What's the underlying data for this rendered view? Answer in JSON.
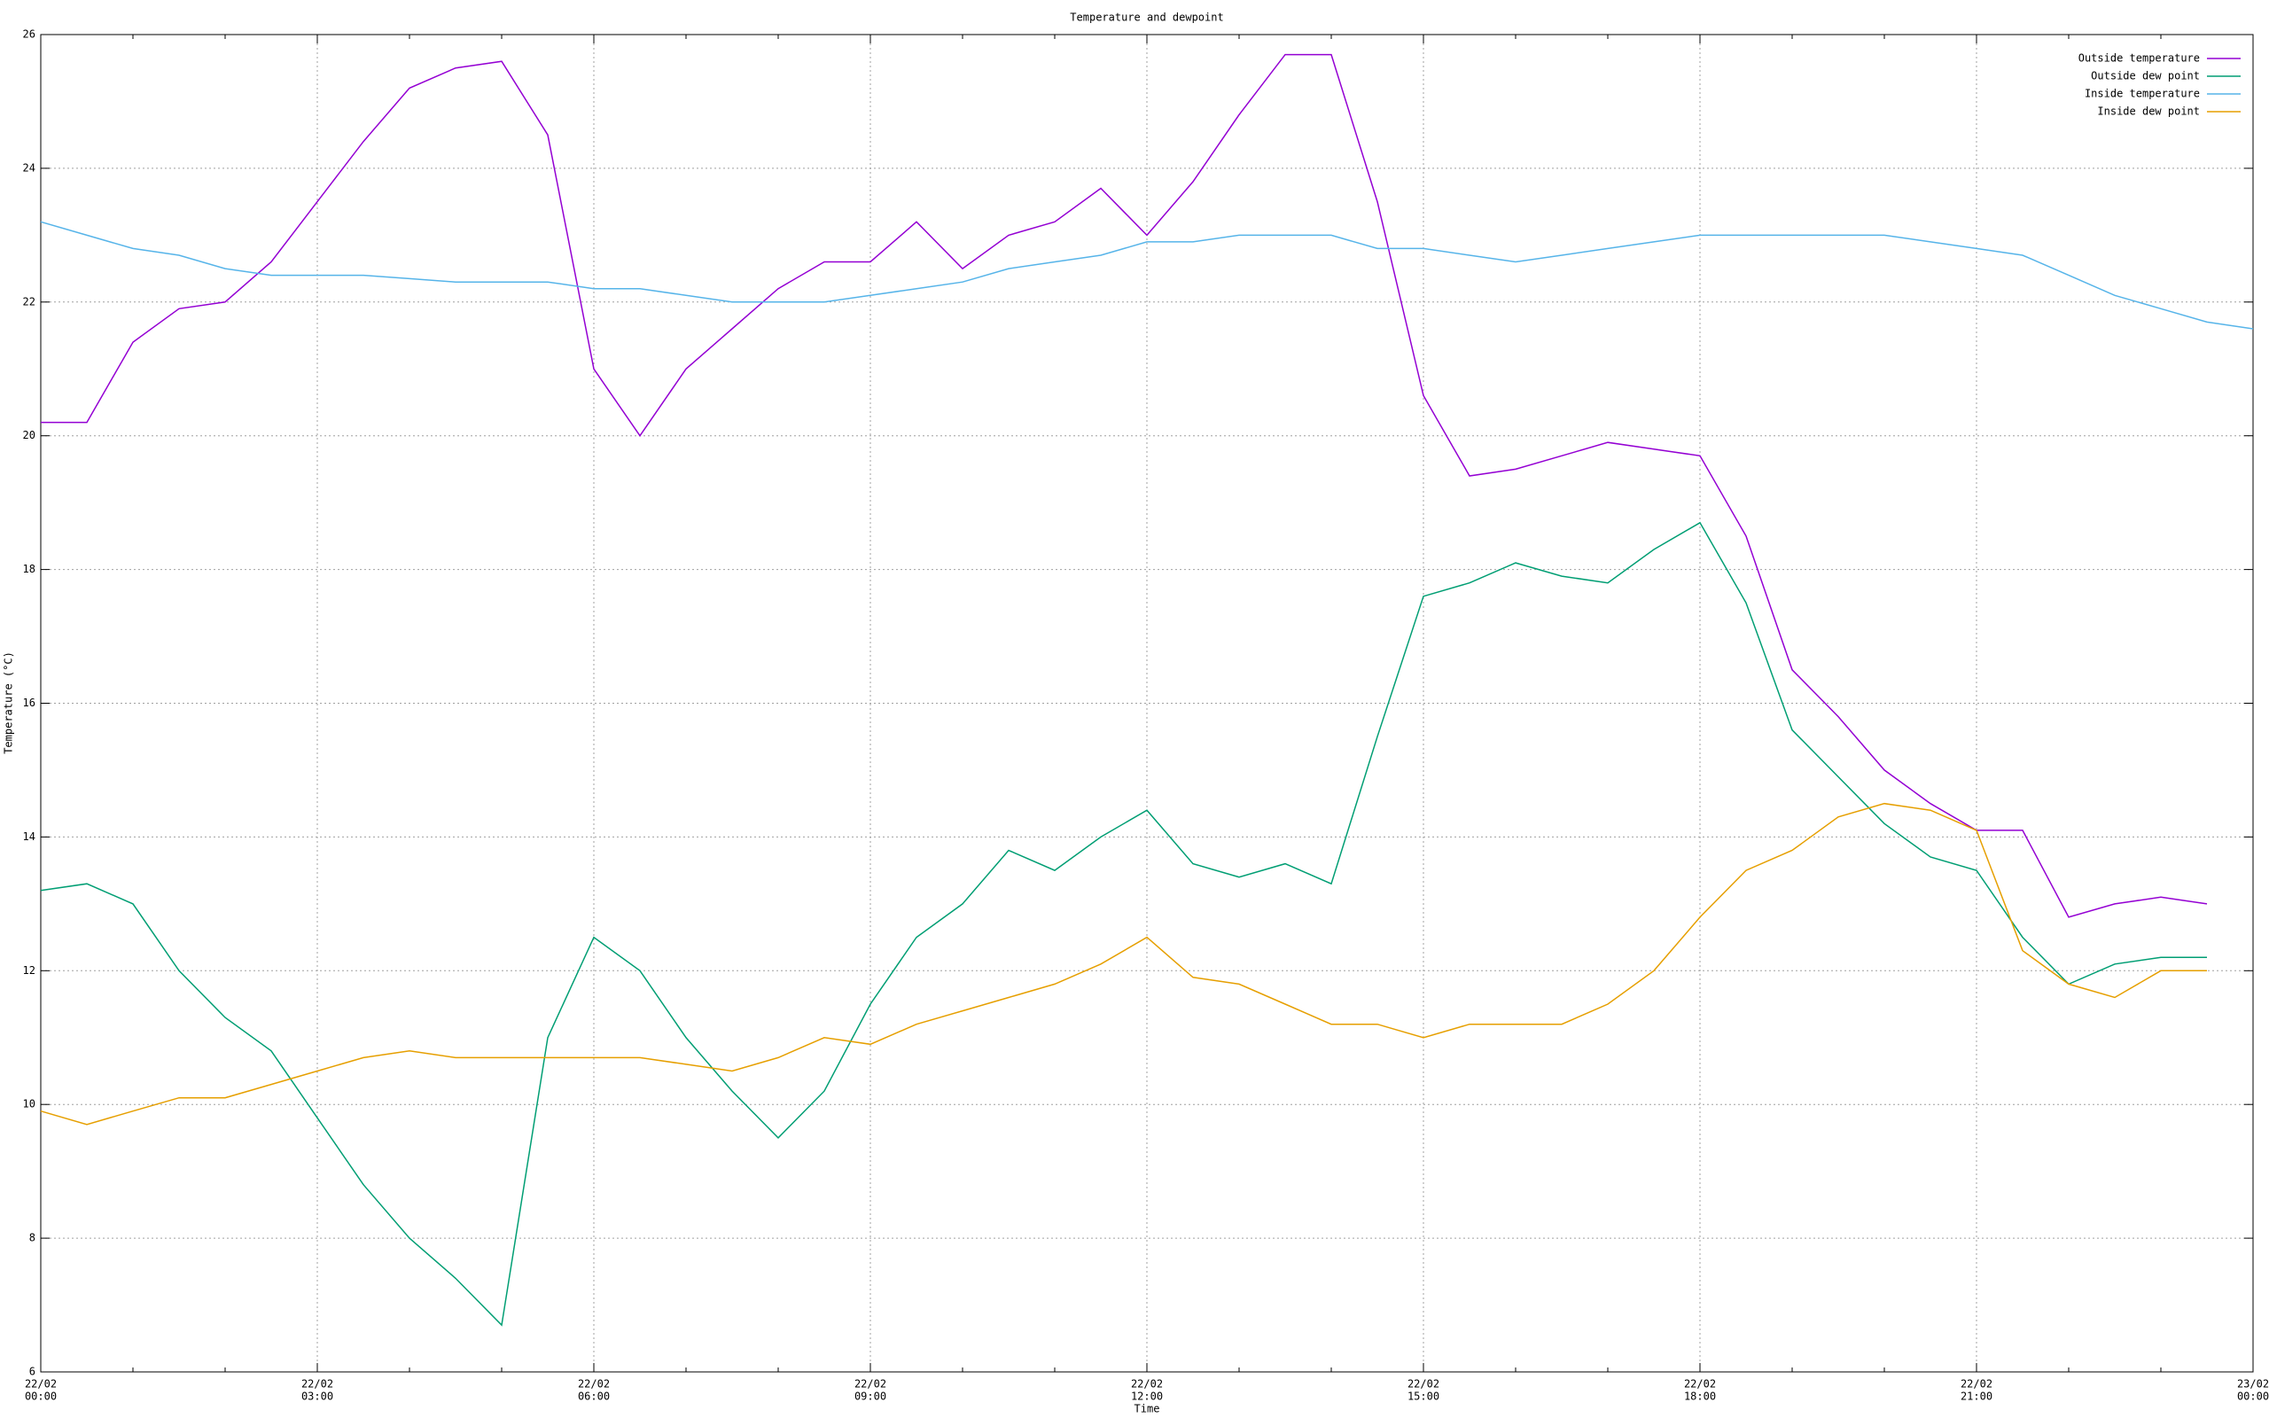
{
  "chart_data": {
    "type": "line",
    "title": "Temperature and dewpoint",
    "x_label": "Time",
    "y_label": "Temperature (°C)",
    "x": [
      0,
      0.5,
      1,
      1.5,
      2,
      2.5,
      3,
      3.5,
      4,
      4.5,
      5,
      5.5,
      6,
      6.5,
      7,
      7.5,
      8,
      8.5,
      9,
      9.5,
      10,
      10.5,
      11,
      11.5,
      12,
      12.5,
      13,
      13.5,
      14,
      14.5,
      15,
      15.5,
      16,
      16.5,
      17,
      17.5,
      18,
      18.5,
      19,
      19.5,
      20,
      20.5,
      21,
      21.5,
      22,
      22.5,
      23,
      23.5,
      24
    ],
    "series": [
      {
        "name": "Outside temperature",
        "color": "#9400d3",
        "values": [
          20.2,
          20.2,
          21.4,
          21.9,
          22.0,
          22.6,
          23.5,
          24.4,
          25.2,
          25.5,
          25.6,
          24.5,
          21.0,
          20.0,
          21.0,
          21.6,
          22.2,
          22.6,
          22.6,
          23.2,
          22.5,
          23.0,
          23.2,
          23.7,
          23.0,
          23.8,
          24.8,
          25.7,
          25.7,
          23.5,
          20.6,
          19.4,
          19.5,
          19.7,
          19.9,
          19.8,
          19.7,
          18.5,
          16.5,
          15.8,
          15.0,
          14.5,
          14.1,
          14.1,
          12.8,
          13.0,
          13.1,
          13.0,
          null
        ]
      },
      {
        "name": "Outside dew point",
        "color": "#009e73",
        "values": [
          13.2,
          13.3,
          13.0,
          12.0,
          11.3,
          10.8,
          9.8,
          8.8,
          8.0,
          7.4,
          6.7,
          11.0,
          12.5,
          12.0,
          11.0,
          10.2,
          9.5,
          10.2,
          11.5,
          12.5,
          13.0,
          13.8,
          13.5,
          14.0,
          14.4,
          13.6,
          13.4,
          13.6,
          13.3,
          15.5,
          17.6,
          17.8,
          18.1,
          17.9,
          17.8,
          18.3,
          18.7,
          17.5,
          15.6,
          14.9,
          14.2,
          13.7,
          13.5,
          12.5,
          11.8,
          12.1,
          12.2,
          12.2,
          null
        ]
      },
      {
        "name": "Inside temperature",
        "color": "#56b4e9",
        "values": [
          23.2,
          23.0,
          22.8,
          22.7,
          22.5,
          22.4,
          22.4,
          22.4,
          22.35,
          22.3,
          22.3,
          22.3,
          22.2,
          22.2,
          22.1,
          22.0,
          22.0,
          22.0,
          22.1,
          22.2,
          22.3,
          22.5,
          22.6,
          22.7,
          22.9,
          22.9,
          23.0,
          23.0,
          23.0,
          22.8,
          22.8,
          22.7,
          22.6,
          22.7,
          22.8,
          22.9,
          23.0,
          23.0,
          23.0,
          23.0,
          23.0,
          22.9,
          22.8,
          22.7,
          22.4,
          22.1,
          21.9,
          21.7,
          21.6
        ]
      },
      {
        "name": "Inside dew point",
        "color": "#e69f00",
        "values": [
          9.9,
          9.7,
          9.9,
          10.1,
          10.1,
          10.3,
          10.5,
          10.7,
          10.8,
          10.7,
          10.7,
          10.7,
          10.7,
          10.7,
          10.6,
          10.5,
          10.7,
          11.0,
          10.9,
          11.2,
          11.4,
          11.6,
          11.8,
          12.1,
          12.5,
          11.9,
          11.8,
          11.5,
          11.2,
          11.2,
          11.0,
          11.2,
          11.2,
          11.2,
          11.5,
          12.0,
          12.8,
          13.5,
          13.8,
          14.3,
          14.5,
          14.4,
          14.1,
          12.3,
          11.8,
          11.6,
          12.0,
          12.0,
          null
        ]
      }
    ],
    "xlim": [
      0,
      24
    ],
    "xticks": [
      {
        "value": 0,
        "label": "00:00",
        "date": "22/02"
      },
      {
        "value": 3,
        "label": "03:00",
        "date": "22/02"
      },
      {
        "value": 6,
        "label": "06:00",
        "date": "22/02"
      },
      {
        "value": 9,
        "label": "09:00",
        "date": "22/02"
      },
      {
        "value": 12,
        "label": "12:00",
        "date": "22/02"
      },
      {
        "value": 15,
        "label": "15:00",
        "date": "22/02"
      },
      {
        "value": 18,
        "label": "18:00",
        "date": "22/02"
      },
      {
        "value": 21,
        "label": "21:00",
        "date": "22/02"
      },
      {
        "value": 24,
        "label": "00:00",
        "date": "23/02"
      }
    ],
    "ylim": [
      6,
      26
    ],
    "yticks": [
      6,
      8,
      10,
      12,
      14,
      16,
      18,
      20,
      22,
      24,
      26
    ],
    "grid": true,
    "legend": "top-right"
  }
}
